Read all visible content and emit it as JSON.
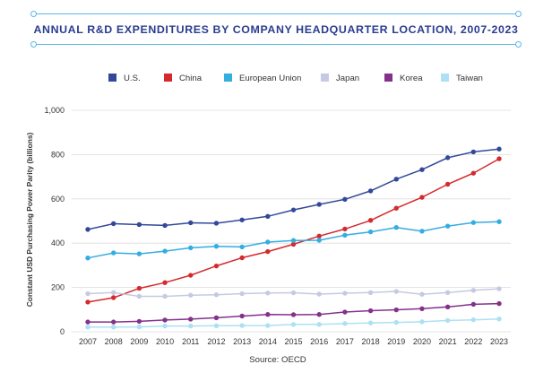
{
  "chart_data": {
    "type": "line",
    "title": "ANNUAL R&D EXPENDITURES BY COMPANY HEADQUARTER LOCATION, 2007-2023",
    "ylabel": "Constant USD Purchasing Power Parity (billions)",
    "xlabel": "",
    "source": "Source: OECD",
    "ylim": [
      0,
      1000
    ],
    "yticks": [
      0,
      200,
      400,
      600,
      800,
      1000
    ],
    "ytick_labels": [
      "0",
      "200",
      "400",
      "600",
      "800",
      "1,000"
    ],
    "grid": "horizontal",
    "legend_position": "top",
    "x": [
      "2007",
      "2008",
      "2009",
      "2010",
      "2011",
      "2012",
      "2013",
      "2014",
      "2015",
      "2016",
      "2017",
      "2018",
      "2019",
      "2020",
      "2021",
      "2022",
      "2023"
    ],
    "series": [
      {
        "name": "U.S.",
        "color": "#34489a",
        "values": [
          462,
          488,
          484,
          480,
          492,
          490,
          505,
          521,
          550,
          575,
          598,
          636,
          689,
          732,
          786,
          812,
          825
        ]
      },
      {
        "name": "China",
        "color": "#d42a2e",
        "values": [
          134,
          154,
          196,
          222,
          255,
          297,
          334,
          362,
          395,
          432,
          464,
          503,
          558,
          607,
          666,
          716,
          781
        ]
      },
      {
        "name": "European Union",
        "color": "#34ade1",
        "values": [
          333,
          356,
          352,
          364,
          379,
          386,
          383,
          405,
          412,
          413,
          436,
          451,
          471,
          454,
          477,
          493,
          497
        ]
      },
      {
        "name": "Japan",
        "color": "#c5cae2",
        "values": [
          172,
          177,
          160,
          160,
          165,
          167,
          172,
          175,
          176,
          170,
          174,
          177,
          182,
          169,
          177,
          187,
          194
        ]
      },
      {
        "name": "Korea",
        "color": "#84318c",
        "values": [
          44,
          44,
          47,
          53,
          57,
          63,
          71,
          78,
          77,
          78,
          89,
          95,
          99,
          104,
          112,
          124,
          127
        ]
      },
      {
        "name": "Taiwan",
        "color": "#ade0f4",
        "values": [
          21,
          21,
          22,
          26,
          26,
          27,
          28,
          28,
          33,
          33,
          37,
          40,
          42,
          45,
          51,
          54,
          58
        ]
      }
    ]
  }
}
